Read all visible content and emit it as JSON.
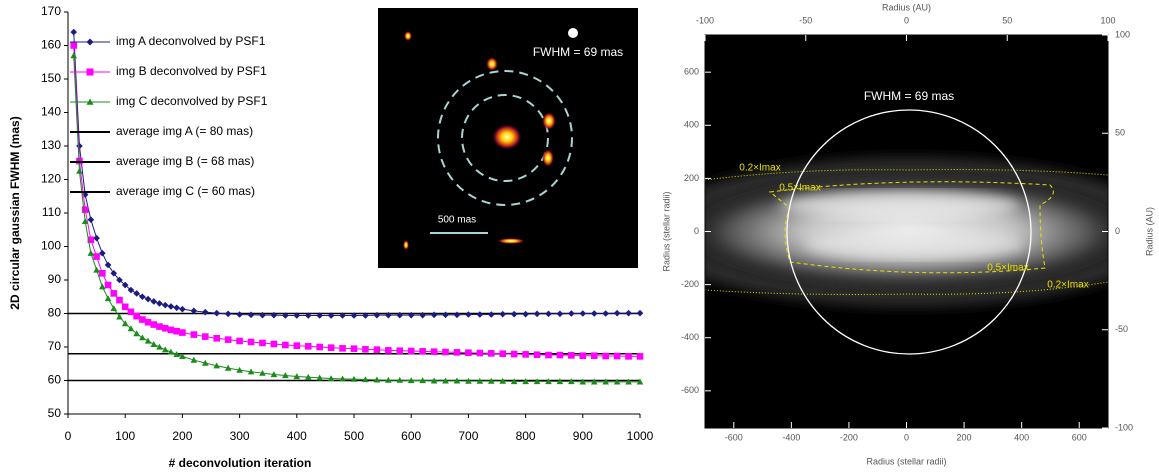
{
  "chart_data": [
    {
      "type": "line",
      "xlabel": "# deconvolution iteration",
      "ylabel": "2D circular gaussian FWHM (mas)",
      "xlim": [
        0,
        1000
      ],
      "xticks": [
        0,
        100,
        200,
        300,
        400,
        500,
        600,
        700,
        800,
        900,
        1000
      ],
      "ylim": [
        50,
        170
      ],
      "yticks": [
        50,
        60,
        70,
        80,
        90,
        100,
        110,
        120,
        130,
        140,
        150,
        160,
        170
      ],
      "grid": false,
      "legend": "upper-left",
      "x": [
        10,
        20,
        30,
        40,
        50,
        60,
        70,
        80,
        90,
        100,
        110,
        120,
        130,
        140,
        150,
        160,
        170,
        180,
        190,
        200,
        220,
        240,
        260,
        280,
        300,
        320,
        340,
        360,
        380,
        400,
        420,
        440,
        460,
        480,
        500,
        520,
        540,
        560,
        580,
        600,
        620,
        640,
        660,
        680,
        700,
        720,
        740,
        760,
        780,
        800,
        820,
        840,
        860,
        880,
        900,
        920,
        940,
        960,
        980,
        1000
      ],
      "series": [
        {
          "name": "img A deconvolved by PSF1",
          "color": "#1c1c80",
          "marker": "diamond",
          "values": [
            164,
            130,
            115.5,
            108,
            102.5,
            98,
            94.5,
            92,
            90,
            88.5,
            87,
            86,
            85,
            84.3,
            83.6,
            83,
            82.5,
            82.1,
            81.7,
            81.3,
            80.8,
            80.4,
            80.1,
            79.9,
            79.7,
            79.6,
            79.5,
            79.5,
            79.4,
            79.4,
            79.4,
            79.4,
            79.4,
            79.4,
            79.4,
            79.4,
            79.5,
            79.5,
            79.5,
            79.5,
            79.5,
            79.6,
            79.6,
            79.6,
            79.7,
            79.7,
            79.7,
            79.8,
            79.8,
            79.8,
            79.9,
            79.9,
            79.9,
            80,
            80,
            80,
            80,
            80.1,
            80.1,
            80.1
          ]
        },
        {
          "name": "img B deconvolved by PSF1",
          "color": "#ff00ff",
          "marker": "square",
          "values": [
            160,
            125.5,
            111,
            102,
            97,
            92,
            88.5,
            86,
            84,
            82,
            80.5,
            79.2,
            78.2,
            77.4,
            76.7,
            76.1,
            75.6,
            75.1,
            74.7,
            74.3,
            73.7,
            73.1,
            72.6,
            72.2,
            71.8,
            71.5,
            71.2,
            70.9,
            70.6,
            70.4,
            70.2,
            70,
            69.8,
            69.6,
            69.5,
            69.3,
            69.2,
            69,
            68.9,
            68.8,
            68.7,
            68.6,
            68.5,
            68.4,
            68.3,
            68.2,
            68.1,
            68,
            67.9,
            67.8,
            67.7,
            67.6,
            67.6,
            67.5,
            67.4,
            67.4,
            67.3,
            67.3,
            67.2,
            67.2
          ]
        },
        {
          "name": "img C deconvolved by PSF1",
          "color": "#1a8c1a",
          "marker": "triangle",
          "values": [
            157,
            122.5,
            107.5,
            98,
            93,
            88,
            84.5,
            81.5,
            79,
            77,
            75.5,
            74,
            72.8,
            71.8,
            70.8,
            70,
            69.2,
            68.5,
            67.8,
            67.2,
            66.1,
            65.2,
            64.4,
            63.7,
            63.1,
            62.6,
            62.2,
            61.8,
            61.5,
            61.2,
            61,
            60.8,
            60.6,
            60.5,
            60.4,
            60.3,
            60.2,
            60.1,
            60.1,
            60,
            60,
            59.9,
            59.9,
            59.9,
            59.8,
            59.8,
            59.8,
            59.8,
            59.7,
            59.7,
            59.7,
            59.7,
            59.7,
            59.7,
            59.6,
            59.6,
            59.6,
            59.6,
            59.6,
            59.6
          ]
        }
      ],
      "hlines": [
        {
          "name": "average img A (= 80 mas)",
          "value": 80,
          "color": "#000000"
        },
        {
          "name": "average img B (= 68 mas)",
          "value": 68,
          "color": "#000000"
        },
        {
          "name": "average img C (= 60 mas)",
          "value": 60,
          "color": "#000000"
        }
      ],
      "inset": {
        "fwhm": "FWHM = 69 mas",
        "scale_bar": "500 mas"
      }
    },
    {
      "type": "image",
      "xlabel": "Radius (stellar radii)",
      "ylabel": "Radius (stellar radii)",
      "x2label": "Radius (AU)",
      "y2label": "Radius (AU)",
      "xlim": [
        -700,
        700
      ],
      "xticks": [
        -600,
        -400,
        -200,
        0,
        200,
        400,
        600
      ],
      "ylim": [
        -740,
        740
      ],
      "yticks": [
        -600,
        -400,
        -200,
        0,
        200,
        400,
        600
      ],
      "x2lim": [
        -100,
        100
      ],
      "x2ticks": [
        -100,
        -50,
        0,
        50,
        100
      ],
      "y2lim": [
        -100,
        100
      ],
      "y2ticks": [
        -100,
        -50,
        0,
        50,
        100
      ],
      "annotations": [
        "FWHM = 69 mas",
        "0.2×Imax",
        "0.5×Imax",
        "0.5×Imax",
        "0.2×Imax"
      ]
    }
  ]
}
